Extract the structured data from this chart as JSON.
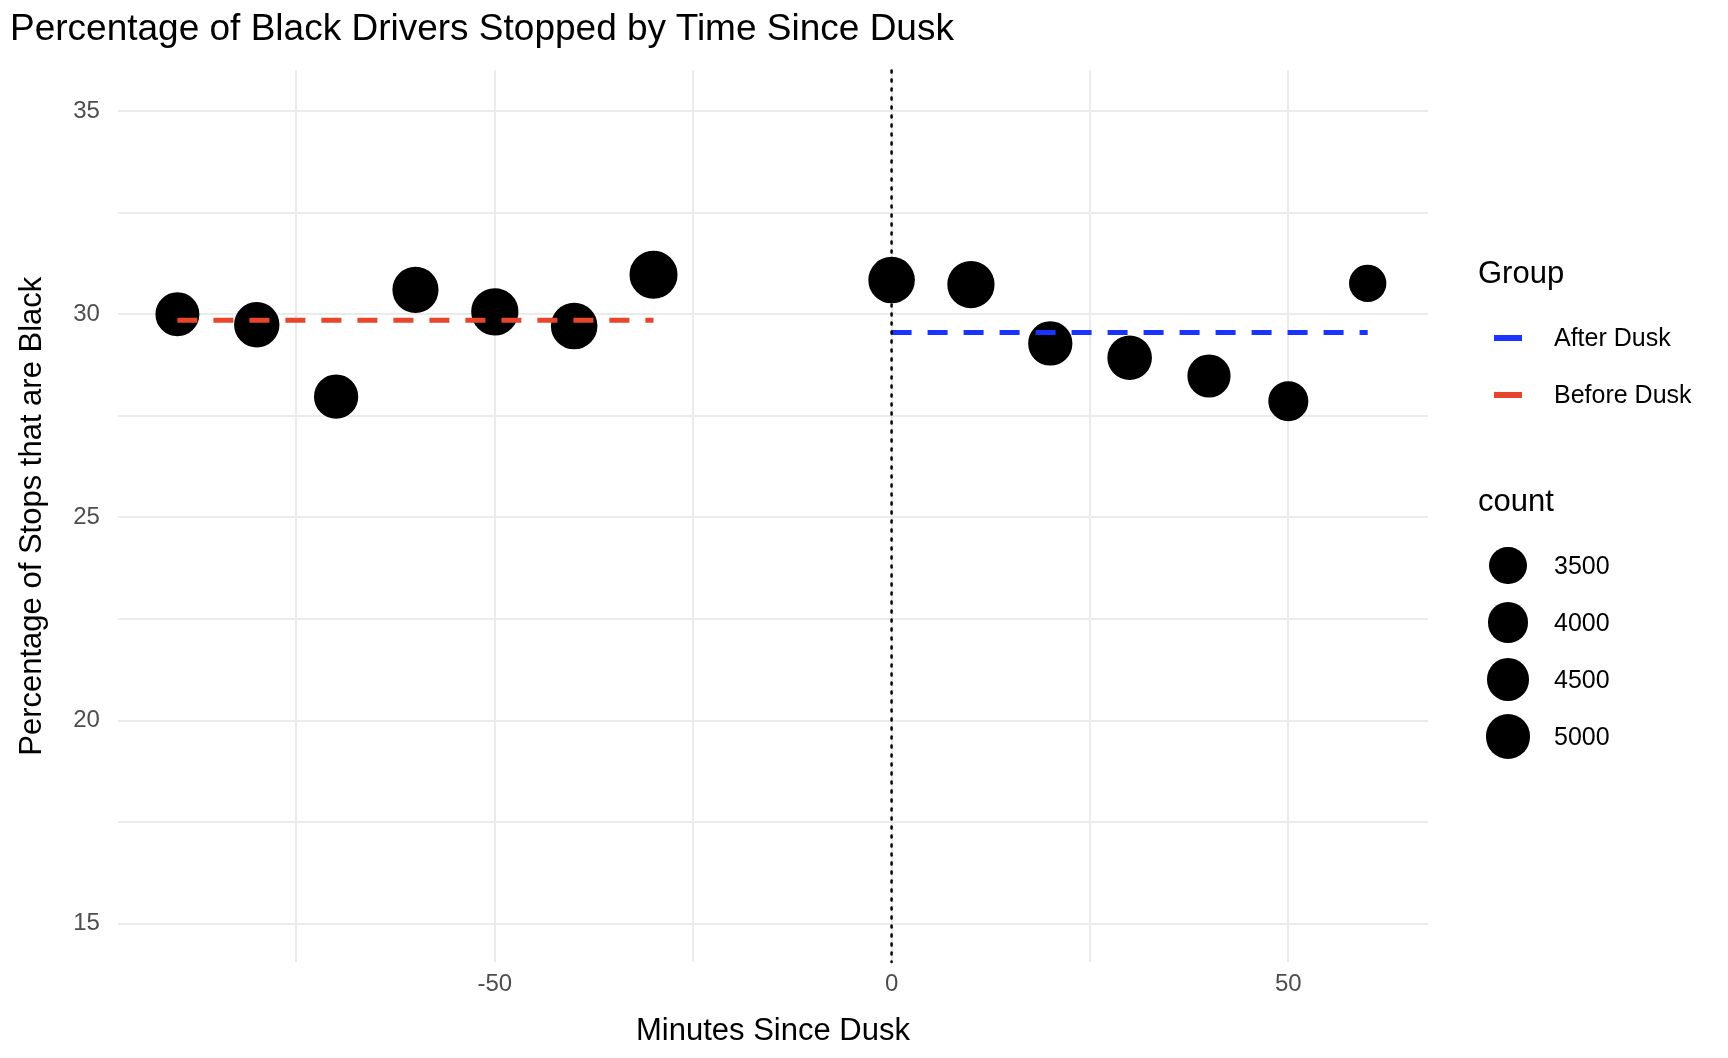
{
  "chart_data": {
    "type": "bubble",
    "title": "Percentage of Black Drivers Stopped by Time Since Dusk",
    "xlabel": "Minutes Since Dusk",
    "ylabel": "Percentage of Stops that are Black",
    "legend_title": "Group",
    "annotations": [
      "count"
    ],
    "series": [
      {
        "color": "#000000",
        "marker": "circle",
        "x": [
          -90,
          -80,
          -70,
          -60,
          -50,
          -40,
          -30,
          0,
          10,
          20,
          30,
          40,
          50,
          60
        ],
        "values": [
          30.0,
          29.74,
          27.97,
          30.6,
          30.06,
          29.71,
          30.97,
          30.84,
          30.73,
          29.28,
          28.93,
          28.48,
          27.86,
          30.76
        ],
        "sizes": [
          4360,
          4670,
          4430,
          4830,
          5080,
          4920,
          5250,
          4920,
          5080,
          4430,
          4500,
          4210,
          3590,
          3100
        ]
      },
      {
        "type": "line",
        "name": "After Dusk",
        "color": "#1a33ff",
        "line_style": "dashed",
        "x": [
          0,
          60
        ],
        "values": [
          29.55,
          29.55
        ]
      },
      {
        "type": "line",
        "name": "Before Dusk",
        "color": "#e8452c",
        "line_style": "dashed",
        "x": [
          -90,
          -30
        ],
        "values": [
          29.85,
          29.85
        ]
      }
    ],
    "size_legend": [
      3500,
      4000,
      4500,
      5000
    ],
    "xlim": [
      -97.5,
      67.6
    ],
    "xticks": [
      {
        "value": -75,
        "label": null
      },
      -50,
      {
        "value": -25,
        "label": null
      },
      0,
      {
        "value": 25,
        "label": null
      },
      50
    ],
    "ylim": [
      14.06,
      36.0
    ],
    "yticks": [
      15,
      {
        "value": 17.5,
        "label": null
      },
      20,
      {
        "value": 22.5,
        "label": null
      },
      25,
      {
        "value": 27.5,
        "label": null
      },
      30,
      {
        "value": 32.5,
        "label": null
      },
      35
    ],
    "ref_lines": [
      {
        "axis": "x",
        "value": 0,
        "color": "#000000",
        "line_style": "dotted"
      }
    ],
    "grid": true,
    "legend": "right"
  }
}
